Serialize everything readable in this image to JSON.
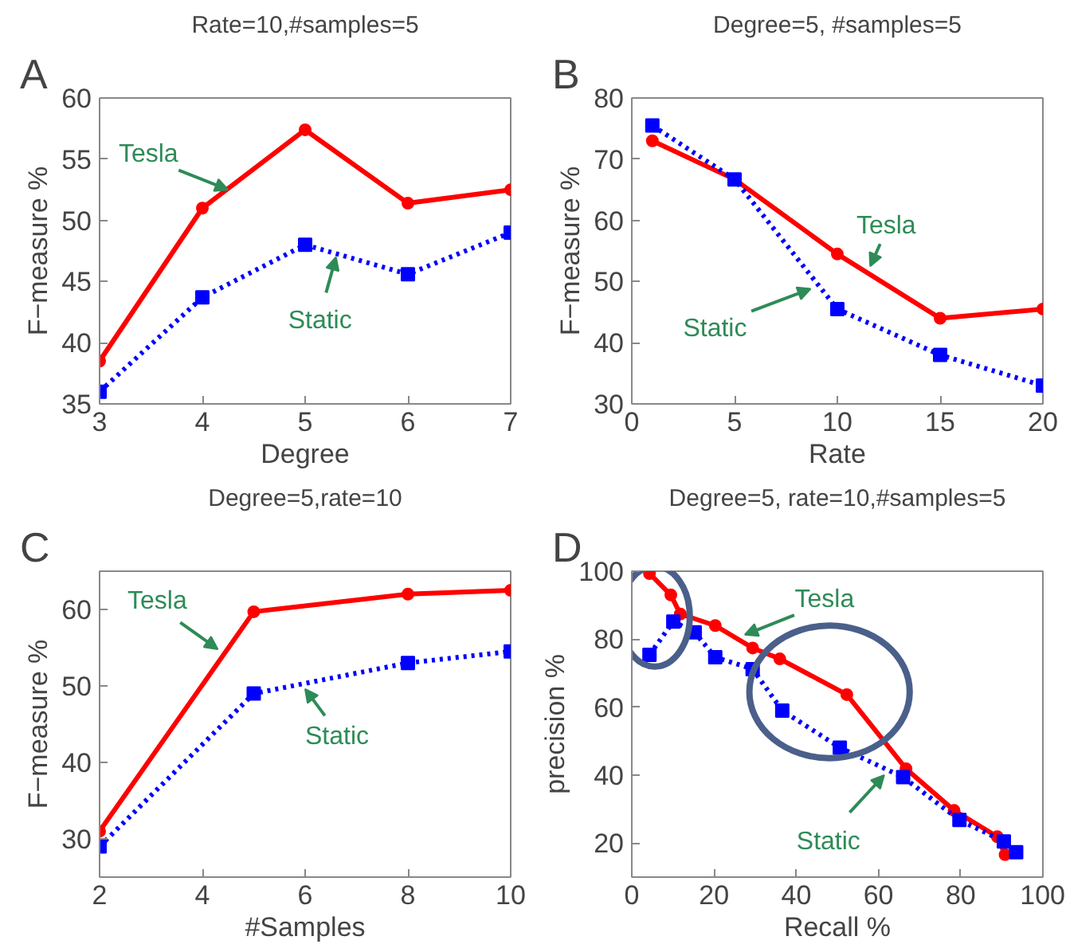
{
  "chart_data": [
    {
      "type": "line",
      "title": "Rate=10,#samples=5",
      "xlabel": "Degree",
      "ylabel": "F−measure %",
      "x": [
        3,
        4,
        5,
        6,
        7
      ],
      "xlim": [
        3,
        7
      ],
      "xticks": [
        3,
        4,
        5,
        6,
        7
      ],
      "ylim": [
        35,
        60
      ],
      "yticks": [
        35,
        40,
        45,
        50,
        55,
        60
      ],
      "grid": false,
      "series": [
        {
          "color": "#ff0000",
          "marker": "circle",
          "line_style": "solid",
          "values": [
            38.5,
            51,
            57.4,
            51.4,
            52.5
          ]
        },
        {
          "color": "#0000ff",
          "marker": "square",
          "line_style": "dotted",
          "values": [
            36,
            43.7,
            48,
            45.6,
            49
          ]
        }
      ],
      "annotations": [
        "A",
        {
          "text": "Tesla",
          "x": 4.25,
          "y": 52.5
        },
        {
          "text": "Static",
          "x": 5.3,
          "y": 47
        }
      ]
    },
    {
      "type": "line",
      "title": "Degree=5, #samples=5",
      "xlabel": "Rate",
      "ylabel": "F−measure %",
      "x": [
        1,
        5,
        10,
        15,
        20
      ],
      "xlim": [
        0,
        20
      ],
      "xticks": [
        0,
        5,
        10,
        15,
        20
      ],
      "ylim": [
        30,
        80
      ],
      "yticks": [
        30,
        40,
        50,
        60,
        70,
        80
      ],
      "grid": false,
      "series": [
        {
          "color": "#ff0000",
          "marker": "circle",
          "line_style": "solid",
          "values": [
            73,
            66.7,
            54.5,
            44,
            45.5
          ]
        },
        {
          "color": "#0000ff",
          "marker": "square",
          "line_style": "dotted",
          "values": [
            75.5,
            66.7,
            45.5,
            38,
            33
          ]
        }
      ],
      "annotations": [
        "B",
        {
          "text": "Tesla",
          "x": 11.6,
          "y": 52.5
        },
        {
          "text": "Static",
          "x": 8.7,
          "y": 48.8
        }
      ]
    },
    {
      "type": "line",
      "title": "Degree=5,rate=10",
      "xlabel": "#Samples",
      "ylabel": "F−measure %",
      "x": [
        2,
        5,
        8,
        10
      ],
      "xlim": [
        2,
        10
      ],
      "xticks": [
        2,
        4,
        6,
        8,
        10
      ],
      "ylim": [
        25,
        65
      ],
      "yticks": [
        30,
        40,
        50,
        60
      ],
      "grid": false,
      "series": [
        {
          "color": "#ff0000",
          "marker": "circle",
          "line_style": "solid",
          "values": [
            31,
            59.7,
            62,
            62.5
          ]
        },
        {
          "color": "#0000ff",
          "marker": "square",
          "line_style": "dotted",
          "values": [
            29,
            49,
            53,
            54.5
          ]
        }
      ],
      "annotations": [
        "C",
        {
          "text": "Tesla",
          "x": 4.3,
          "y": 54.8
        },
        {
          "text": "Static",
          "x": 6.0,
          "y": 49.6
        }
      ]
    },
    {
      "type": "line",
      "title": "Degree=5, rate=10,#samples=5",
      "xlabel": "Recall %",
      "ylabel": "precision %",
      "xlim": [
        0,
        100
      ],
      "xticks": [
        0,
        20,
        40,
        60,
        80,
        100
      ],
      "ylim": [
        10,
        100
      ],
      "yticks": [
        20,
        40,
        60,
        80,
        100
      ],
      "grid": false,
      "series": [
        {
          "color": "#ff0000",
          "marker": "circle",
          "line_style": "solid",
          "x": [
            4.3,
            9.5,
            11.8,
            20.3,
            29.4,
            36,
            52.3,
            66.7,
            78.4,
            88.9,
            90.8
          ],
          "values": [
            99.3,
            93,
            87.4,
            84,
            77.4,
            74.2,
            63.7,
            41.9,
            29.6,
            21.9,
            16.6
          ]
        },
        {
          "color": "#0000ff",
          "marker": "square",
          "line_style": "dotted",
          "x": [
            4.3,
            10.1,
            15.3,
            20.3,
            29.4,
            36.6,
            50.6,
            66,
            79.7,
            90.5,
            93.5
          ],
          "values": [
            75.4,
            85.2,
            82,
            74.7,
            71.2,
            59,
            48.1,
            39.4,
            26.8,
            20.5,
            17.3
          ]
        }
      ],
      "annotations": [
        "D",
        {
          "text": "Tesla",
          "x": 27.5,
          "y": 81.3
        },
        {
          "text": "Static",
          "x": 61.4,
          "y": 40
        }
      ]
    }
  ]
}
